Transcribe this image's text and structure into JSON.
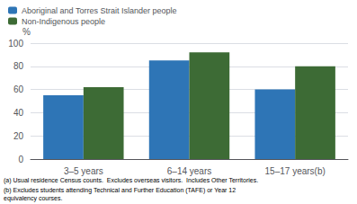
{
  "chart_data": {
    "type": "bar",
    "categories": [
      "3–5 years",
      "6–14 years",
      "15–17 years(b)"
    ],
    "series": [
      {
        "name": "Aboriginal and Torres Strait Islander people",
        "color": "#2E75B6",
        "values": [
          55,
          85,
          60
        ]
      },
      {
        "name": "Non-Indigenous people",
        "color": "#3D6B35",
        "values": [
          62,
          92,
          80
        ]
      }
    ],
    "ylabel": "%",
    "ylim": [
      0,
      100
    ],
    "yticks": [
      0,
      20,
      40,
      60,
      80,
      100
    ],
    "grid": true,
    "legend": "upper left",
    "annotations": [
      "(a) Usual residence Census counts.  Excludes overseas visitors.  Includes Other Territories.",
      "(b) Excludes students attending Technical and Further Education (TAFE) or Year 12\nequivalency courses."
    ]
  }
}
